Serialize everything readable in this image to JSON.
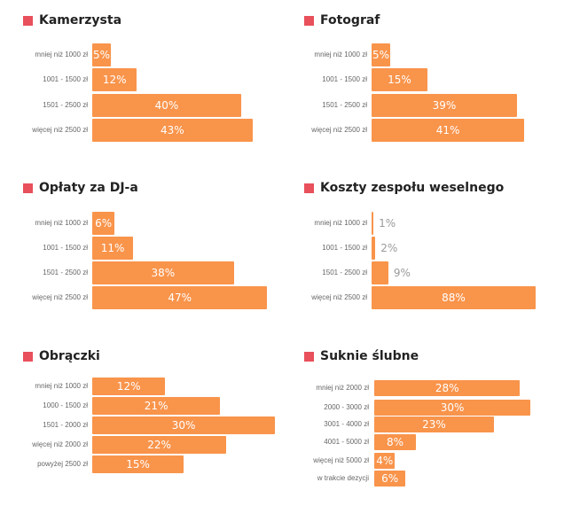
{
  "colors": {
    "bar": "#f9944b",
    "title_marker": "#e8505b",
    "label": "#666666"
  },
  "chart_data": [
    {
      "type": "bar",
      "orientation": "horizontal",
      "title": "Kamerzysta",
      "categories": [
        "mniej niż 1000 zł",
        "1001 - 1500 zł",
        "1501 - 2500 zł",
        "więcej niż 2500 zł"
      ],
      "values": [
        5,
        12,
        40,
        43
      ],
      "value_labels": [
        "5%",
        "12%",
        "40%",
        "43%"
      ]
    },
    {
      "type": "bar",
      "orientation": "horizontal",
      "title": "Fotograf",
      "categories": [
        "mniej niż 1000 zł",
        "1001 - 1500 zł",
        "1501 - 2500 zł",
        "więcej niż 2500 zł"
      ],
      "values": [
        5,
        15,
        39,
        41
      ],
      "value_labels": [
        "5%",
        "15%",
        "39%",
        "41%"
      ]
    },
    {
      "type": "bar",
      "orientation": "horizontal",
      "title": "Opłaty za DJ-a",
      "categories": [
        "mniej niż 1000 zł",
        "1001 - 1500 zł",
        "1501 - 2500 zł",
        "więcej niż 2500 zł"
      ],
      "values": [
        6,
        11,
        38,
        47
      ],
      "value_labels": [
        "6%",
        "11%",
        "38%",
        "47%"
      ]
    },
    {
      "type": "bar",
      "orientation": "horizontal",
      "title": "Koszty zespołu weselnego",
      "categories": [
        "mniej niż 1000 zł",
        "1001 - 1500 zł",
        "1501 - 2500 zł",
        "więcej niż 2500 zł"
      ],
      "values": [
        1,
        2,
        9,
        88
      ],
      "value_labels": [
        "1%",
        "2%",
        "9%",
        "88%"
      ]
    },
    {
      "type": "bar",
      "orientation": "horizontal",
      "title": "Obrączki",
      "categories": [
        "mniej niż 1000 zł",
        "1000 - 1500 zł",
        "1501 - 2000 zł",
        "więcej niż 2000 zł",
        "powyżej 2500 zł"
      ],
      "values": [
        12,
        21,
        30,
        22,
        15
      ],
      "value_labels": [
        "12%",
        "21%",
        "30%",
        "22%",
        "15%"
      ]
    },
    {
      "type": "bar",
      "orientation": "horizontal",
      "title": "Suknie ślubne",
      "categories": [
        "mniej niż 2000 zł",
        "2000 - 3000 zł",
        "3001 - 4000 zł",
        "4001 - 5000 zł",
        "więcej niż 5000 zł",
        "w trakcie dezycji"
      ],
      "values": [
        28,
        30,
        23,
        8,
        4,
        6
      ],
      "value_labels": [
        "28%",
        "30%",
        "23%",
        "8%",
        "4%",
        "6%"
      ]
    }
  ]
}
